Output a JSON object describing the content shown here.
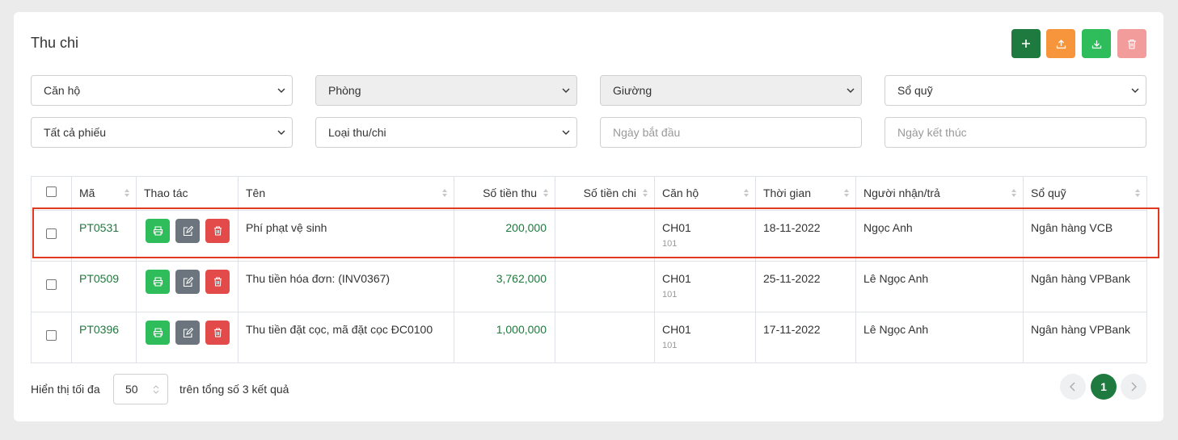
{
  "header": {
    "title": "Thu chi"
  },
  "filters": [
    "Căn hộ",
    "Phòng",
    "Giường",
    "Sổ quỹ",
    "Tất cả phiếu",
    "Loại thu/chi",
    "Ngày bắt đầu",
    "Ngày kết thúc"
  ],
  "table": {
    "columns": [
      "Mã",
      "Thao tác",
      "Tên",
      "Số tiền thu",
      "Số tiền chi",
      "Căn hộ",
      "Thời gian",
      "Người nhận/trả",
      "Sổ quỹ"
    ],
    "rows": [
      {
        "code": "PT0531",
        "name": "Phí phạt vệ sinh",
        "income": "200,000",
        "apartment": "CH01",
        "room": "101",
        "date": "18-11-2022",
        "person": "Ngọc Anh",
        "fund": "Ngân hàng VCB"
      },
      {
        "code": "PT0509",
        "name": "Thu tiền hóa đơn: (INV0367)",
        "income": "3,762,000",
        "apartment": "CH01",
        "room": "101",
        "date": "25-11-2022",
        "person": "Lê Ngọc Anh",
        "fund": "Ngân hàng VPBank"
      },
      {
        "code": "PT0396",
        "name": "Thu tiền đặt cọc, mã đặt cọc ĐC0100",
        "income": "1,000,000",
        "apartment": "CH01",
        "room": "101",
        "date": "17-11-2022",
        "person": "Lê Ngọc Anh",
        "fund": "Ngân hàng VPBank"
      }
    ]
  },
  "footer": {
    "show_label": "Hiển thị tối đa",
    "page_size": "50",
    "total_label": "trên tổng số 3 kết quả",
    "current_page": "1"
  }
}
